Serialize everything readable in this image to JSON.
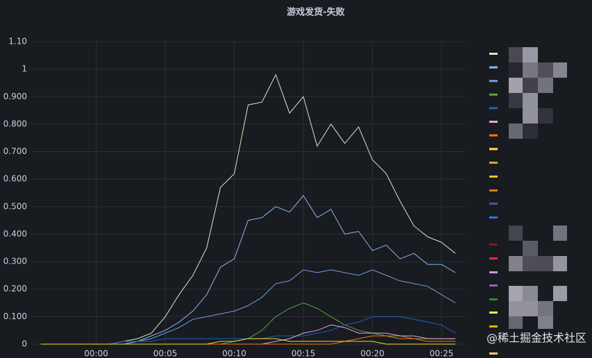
{
  "chart_data": {
    "type": "line",
    "title": "游戏发货-失败",
    "x": [
      -4,
      -3,
      -2,
      -1,
      0,
      1,
      2,
      3,
      4,
      5,
      6,
      7,
      8,
      9,
      10,
      11,
      12,
      13,
      14,
      15,
      16,
      17,
      18,
      19,
      20,
      21,
      22,
      23,
      24,
      25,
      26
    ],
    "xlim": [
      -4.7,
      26.7
    ],
    "xticks": [
      {
        "value": 0,
        "label": "00:00"
      },
      {
        "value": 5,
        "label": "00:05"
      },
      {
        "value": 10,
        "label": "00:10"
      },
      {
        "value": 15,
        "label": "00:15"
      },
      {
        "value": 20,
        "label": "00:20"
      },
      {
        "value": 25,
        "label": "00:25"
      }
    ],
    "ylim": [
      0,
      1.1
    ],
    "yticks": [
      0,
      {
        "value": 0.1,
        "label": "0.100"
      },
      {
        "value": 0.2,
        "label": "0.200"
      },
      {
        "value": 0.3,
        "label": "0.300"
      },
      {
        "value": 0.4,
        "label": "0.400"
      },
      {
        "value": 0.5,
        "label": "0.500"
      },
      {
        "value": 0.6,
        "label": "0.600"
      },
      {
        "value": 0.7,
        "label": "0.700"
      },
      {
        "value": 0.8,
        "label": "0.800"
      },
      {
        "value": 0.9,
        "label": "0.900"
      },
      1,
      {
        "value": 1.1,
        "label": "1.10"
      }
    ],
    "grid": true,
    "series": [
      {
        "color": "#c8f2c2",
        "values": [
          0,
          0,
          0,
          0,
          0,
          0,
          0.01,
          0.02,
          0.04,
          0.1,
          0.18,
          0.25,
          0.35,
          0.57,
          0.62,
          0.87,
          0.88,
          0.98,
          0.84,
          0.9,
          0.72,
          0.8,
          0.73,
          0.79,
          0.67,
          0.62,
          0.52,
          0.43,
          0.39,
          0.37,
          0.33
        ]
      },
      {
        "color": "#8ab8ff",
        "values": [
          0,
          0,
          0,
          0,
          0,
          0,
          0,
          0.01,
          0.03,
          0.05,
          0.08,
          0.12,
          0.18,
          0.28,
          0.31,
          0.45,
          0.46,
          0.5,
          0.48,
          0.54,
          0.46,
          0.49,
          0.4,
          0.41,
          0.34,
          0.36,
          0.31,
          0.33,
          0.29,
          0.29,
          0.26
        ]
      },
      {
        "color": "#73a0e8",
        "values": [
          0,
          0,
          0,
          0,
          0,
          0,
          0,
          0.01,
          0.02,
          0.04,
          0.06,
          0.09,
          0.1,
          0.11,
          0.12,
          0.14,
          0.17,
          0.22,
          0.23,
          0.27,
          0.26,
          0.27,
          0.26,
          0.25,
          0.27,
          0.25,
          0.23,
          0.22,
          0.21,
          0.18,
          0.15
        ]
      },
      {
        "color": "#56a64b",
        "values": [
          0,
          0,
          0,
          0,
          0,
          0,
          0,
          0,
          0,
          0,
          0,
          0,
          0,
          0,
          0.01,
          0.02,
          0.05,
          0.1,
          0.13,
          0.15,
          0.13,
          0.1,
          0.07,
          0.05,
          0.04,
          0.03,
          0.03,
          0.02,
          0.02,
          0.02,
          0.02
        ]
      },
      {
        "color": "#1f60c4",
        "values": [
          0,
          0,
          0,
          0,
          0,
          0,
          0.01,
          0.01,
          0.01,
          0.02,
          0.02,
          0.02,
          0.02,
          0.02,
          0.02,
          0.02,
          0.02,
          0.03,
          0.03,
          0.03,
          0.04,
          0.05,
          0.07,
          0.08,
          0.1,
          0.1,
          0.1,
          0.09,
          0.08,
          0.07,
          0.04
        ]
      },
      {
        "color": "#f2a0e0",
        "values": [
          0,
          0,
          0,
          0,
          0,
          0,
          0,
          0,
          0,
          0,
          0,
          0,
          0,
          0,
          0,
          0,
          0,
          0.01,
          0.02,
          0.04,
          0.05,
          0.07,
          0.06,
          0.04,
          0.04,
          0.04,
          0.03,
          0.03,
          0.02,
          0.02,
          0.02
        ]
      },
      {
        "color": "#ff780a",
        "values": [
          0,
          0,
          0,
          0,
          0,
          0,
          0,
          0,
          0,
          0,
          0,
          0,
          0,
          0,
          0,
          0,
          0,
          0,
          0,
          0,
          0,
          0,
          0.01,
          0.02,
          0.03,
          0.03,
          0.02,
          0.02,
          0.01,
          0.01,
          0.01
        ]
      },
      {
        "color": "#fade2a",
        "values": [
          0,
          0,
          0,
          0,
          0,
          0,
          0,
          0,
          0,
          0,
          0,
          0,
          0,
          0.01,
          0.01,
          0.02,
          0.02,
          0.02,
          0.01,
          0.01,
          0.01,
          0.01,
          0.01,
          0.01,
          0.01,
          0,
          0,
          0,
          0,
          0,
          0
        ]
      }
    ]
  },
  "watermark": "@稀土掘金技术社区"
}
